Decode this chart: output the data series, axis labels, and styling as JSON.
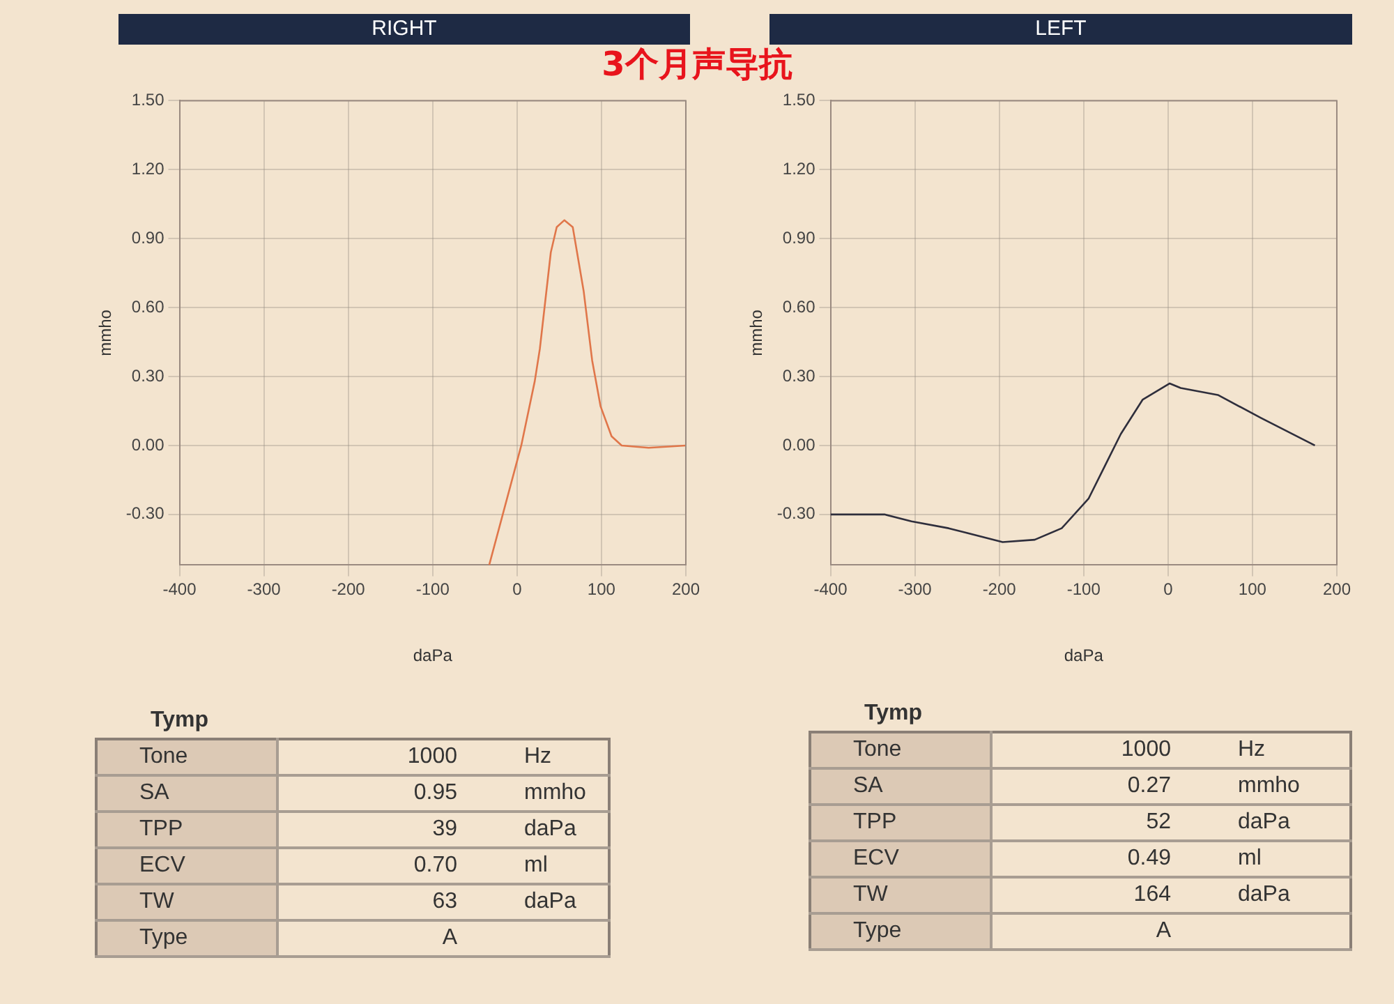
{
  "chart_data": [
    {
      "type": "line",
      "title": "RIGHT",
      "annotations": [
        "3个月声导抗"
      ],
      "xlabel": "daPa",
      "ylabel": "mmho",
      "xlim": [
        -400,
        200
      ],
      "ylim": [
        -0.52,
        1.5
      ],
      "xticks": [
        -400,
        -300,
        -200,
        -100,
        0,
        100,
        200
      ],
      "yticks": [
        {
          "value": -0.3,
          "label": "-0.30"
        },
        {
          "value": 0,
          "label": "0.00"
        },
        {
          "value": 0.3,
          "label": "0.30"
        },
        {
          "value": 0.6,
          "label": "0.60"
        },
        {
          "value": 0.9,
          "label": "0.90"
        },
        {
          "value": 1.2,
          "label": "1.20"
        },
        {
          "value": 1.5,
          "label": "1.50"
        }
      ],
      "grid": true,
      "legend": false,
      "marker": "none",
      "line_style": "solid",
      "series": [
        {
          "color": "#e0764a",
          "x": [
            -33,
            5,
            21,
            27,
            40,
            47,
            56,
            66,
            79,
            89,
            99,
            112,
            124,
            156,
            200
          ],
          "values": [
            -0.52,
            0,
            0.28,
            0.42,
            0.84,
            0.95,
            0.98,
            0.95,
            0.67,
            0.37,
            0.17,
            0.04,
            0,
            -0.01,
            0
          ]
        }
      ]
    },
    {
      "type": "line",
      "title": "LEFT",
      "xlabel": "daPa",
      "ylabel": "mmho",
      "xlim": [
        -400,
        200
      ],
      "ylim": [
        -0.52,
        1.5
      ],
      "xticks": [
        -400,
        -300,
        -200,
        -100,
        0,
        100,
        200
      ],
      "yticks": [
        {
          "value": -0.3,
          "label": "-0.30"
        },
        {
          "value": 0,
          "label": "0.00"
        },
        {
          "value": 0.3,
          "label": "0.30"
        },
        {
          "value": 0.6,
          "label": "0.60"
        },
        {
          "value": 0.9,
          "label": "0.90"
        },
        {
          "value": 1.2,
          "label": "1.20"
        },
        {
          "value": 1.5,
          "label": "1.50"
        }
      ],
      "grid": true,
      "legend": false,
      "marker": "none",
      "line_style": "solid",
      "series": [
        {
          "color": "#2e2e3c",
          "x": [
            -400,
            -336,
            -304,
            -260,
            -196,
            -158,
            -126,
            -94,
            -75,
            -56,
            -30,
            2,
            15,
            59,
            110,
            174
          ],
          "values": [
            -0.3,
            -0.3,
            -0.33,
            -0.36,
            -0.42,
            -0.41,
            -0.36,
            -0.23,
            -0.09,
            0.05,
            0.2,
            0.27,
            0.25,
            0.22,
            0.12,
            0
          ]
        }
      ]
    },
    {
      "type": "other",
      "title": "Tymp",
      "annotations": [
        "Tone",
        "1000",
        "Hz",
        "SA",
        "0.95",
        "mmho",
        "TPP",
        "39",
        "daPa",
        "ECV",
        "0.70",
        "ml",
        "TW",
        "63",
        "daPa",
        "Type",
        "A"
      ]
    },
    {
      "type": "other",
      "title": "Tymp",
      "annotations": [
        "Tone",
        "1000",
        "Hz",
        "SA",
        "0.27",
        "mmho",
        "TPP",
        "52",
        "daPa",
        "ECV",
        "0.49",
        "ml",
        "TW",
        "164",
        "daPa",
        "Type",
        "A"
      ]
    }
  ]
}
